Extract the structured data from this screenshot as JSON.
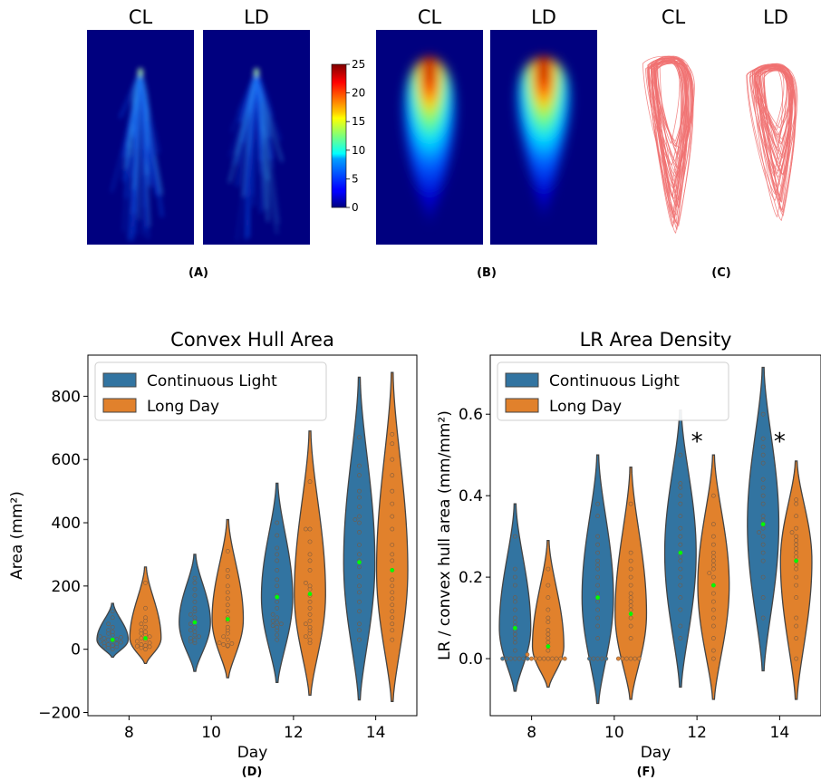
{
  "panels": {
    "A": {
      "label": "(A)",
      "left_title": "CL",
      "right_title": "LD"
    },
    "B": {
      "label": "(B)",
      "left_title": "CL",
      "right_title": "LD"
    },
    "C": {
      "label": "(C)",
      "left_title": "CL",
      "right_title": "LD"
    },
    "D": {
      "label": "(D)"
    },
    "F": {
      "label": "(F)"
    }
  },
  "colorbar": {
    "ticks": [
      0,
      5,
      10,
      15,
      20,
      25
    ],
    "range": [
      0,
      25
    ],
    "colormap": "jet"
  },
  "colors": {
    "continuous_light": "#3274a1",
    "long_day": "#e1812c",
    "mean_marker": "#00ff00",
    "trace": "#f07070",
    "heatmap_bg": "#00007f"
  },
  "chart_data": [
    {
      "type": "violin",
      "title": "Convex Hull Area",
      "xlabel": "Day",
      "ylabel": "Area (mm²)",
      "categories": [
        "8",
        "10",
        "12",
        "14"
      ],
      "ylim": [
        -210,
        930
      ],
      "yticks": [
        -200,
        0,
        200,
        400,
        600,
        800
      ],
      "legend": {
        "placement": "top-left",
        "entries": [
          "Continuous Light",
          "Long Day"
        ]
      },
      "series": [
        {
          "name": "Continuous Light",
          "color": "#3274a1",
          "mean": [
            30,
            85,
            165,
            275
          ],
          "range": [
            [
              -25,
              145
            ],
            [
              -70,
              300
            ],
            [
              -105,
              525
            ],
            [
              -160,
              860
            ]
          ],
          "points": [
            [
              0,
              5,
              8,
              10,
              12,
              15,
              18,
              20,
              22,
              25,
              28,
              30,
              32,
              35,
              38,
              40,
              45,
              50,
              55,
              60,
              70,
              80,
              100,
              120
            ],
            [
              20,
              25,
              30,
              35,
              40,
              45,
              55,
              60,
              70,
              80,
              90,
              100,
              110,
              120,
              130,
              150,
              170,
              190,
              210,
              225
            ],
            [
              30,
              45,
              60,
              70,
              75,
              80,
              85,
              90,
              100,
              110,
              130,
              150,
              170,
              200,
              220,
              250,
              280,
              300,
              320,
              360,
              400
            ],
            [
              30,
              60,
              80,
              120,
              150,
              180,
              200,
              230,
              260,
              280,
              300,
              330,
              370,
              400,
              410,
              420,
              450,
              480,
              500,
              550,
              580,
              670
            ]
          ]
        },
        {
          "name": "Long Day",
          "color": "#e1812c",
          "mean": [
            35,
            95,
            175,
            250
          ],
          "range": [
            [
              -45,
              260
            ],
            [
              -90,
              410
            ],
            [
              -145,
              690
            ],
            [
              -165,
              875
            ]
          ],
          "points": [
            [
              0,
              5,
              8,
              10,
              12,
              15,
              20,
              25,
              30,
              35,
              40,
              45,
              50,
              55,
              60,
              70,
              80,
              90,
              100,
              130,
              210
            ],
            [
              10,
              12,
              15,
              18,
              20,
              30,
              40,
              50,
              60,
              70,
              90,
              100,
              120,
              140,
              160,
              180,
              200,
              230,
              250,
              310
            ],
            [
              20,
              30,
              40,
              50,
              60,
              70,
              80,
              90,
              110,
              130,
              150,
              170,
              190,
              200,
              210,
              250,
              280,
              300,
              340,
              380,
              380,
              530
            ],
            [
              30,
              60,
              80,
              100,
              120,
              140,
              160,
              180,
              200,
              220,
              250,
              280,
              300,
              330,
              380,
              420,
              460,
              500,
              550,
              600,
              650,
              680
            ]
          ]
        }
      ]
    },
    {
      "type": "violin",
      "title": "LR Area Density",
      "xlabel": "Day",
      "ylabel": "LR / convex hull area (mm/mm²)",
      "categories": [
        "8",
        "10",
        "12",
        "14"
      ],
      "ylim": [
        -0.14,
        0.745
      ],
      "yticks": [
        0.0,
        0.2,
        0.4,
        0.6
      ],
      "ytick_labels": [
        "0.0",
        "0.2",
        "0.4",
        "0.6"
      ],
      "legend": {
        "placement": "top-left",
        "entries": [
          "Continuous Light",
          "Long Day"
        ]
      },
      "annotations": [
        {
          "text": "*",
          "category": "12"
        },
        {
          "text": "*",
          "category": "14"
        }
      ],
      "series": [
        {
          "name": "Continuous Light",
          "color": "#3274a1",
          "mean": [
            0.075,
            0.15,
            0.26,
            0.33
          ],
          "range": [
            [
              -0.08,
              0.38
            ],
            [
              -0.11,
              0.5
            ],
            [
              -0.07,
              0.61
            ],
            [
              -0.03,
              0.715
            ]
          ],
          "points": [
            [
              0,
              0,
              0,
              0,
              0,
              0,
              0,
              0.02,
              0.04,
              0.05,
              0.06,
              0.07,
              0.08,
              0.09,
              0.1,
              0.12,
              0.14,
              0.15,
              0.18,
              0.2,
              0.22,
              0.3
            ],
            [
              0,
              0,
              0,
              0,
              0,
              0.05,
              0.08,
              0.1,
              0.12,
              0.14,
              0.15,
              0.16,
              0.18,
              0.2,
              0.22,
              0.23,
              0.24,
              0.26,
              0.28,
              0.3,
              0.35,
              0.38
            ],
            [
              0.05,
              0.08,
              0.12,
              0.15,
              0.18,
              0.2,
              0.22,
              0.24,
              0.25,
              0.26,
              0.28,
              0.3,
              0.32,
              0.35,
              0.38,
              0.4,
              0.42,
              0.43,
              0.5
            ],
            [
              0.1,
              0.15,
              0.2,
              0.24,
              0.26,
              0.28,
              0.3,
              0.31,
              0.32,
              0.33,
              0.34,
              0.35,
              0.38,
              0.4,
              0.42,
              0.44,
              0.48,
              0.5,
              0.52,
              0.54,
              0.6
            ]
          ]
        },
        {
          "name": "Long Day",
          "color": "#e1812c",
          "mean": [
            0.03,
            0.11,
            0.18,
            0.24
          ],
          "range": [
            [
              -0.07,
              0.29
            ],
            [
              -0.1,
              0.47
            ],
            [
              -0.1,
              0.5
            ],
            [
              -0.1,
              0.485
            ]
          ],
          "points": [
            [
              0,
              0,
              0,
              0,
              0,
              0,
              0,
              0,
              0,
              0.01,
              0.02,
              0.03,
              0.04,
              0.05,
              0.06,
              0.07,
              0.09,
              0.1,
              0.12,
              0.15,
              0.18,
              0.22
            ],
            [
              0,
              0,
              0,
              0,
              0,
              0,
              0.05,
              0.08,
              0.1,
              0.12,
              0.13,
              0.14,
              0.15,
              0.16,
              0.18,
              0.2,
              0.22,
              0.24,
              0.26,
              0.38
            ],
            [
              0,
              0.02,
              0.05,
              0.08,
              0.1,
              0.12,
              0.14,
              0.16,
              0.18,
              0.2,
              0.21,
              0.22,
              0.23,
              0.24,
              0.25,
              0.26,
              0.28,
              0.3,
              0.33,
              0.4
            ],
            [
              0,
              0.05,
              0.08,
              0.1,
              0.15,
              0.18,
              0.2,
              0.22,
              0.23,
              0.24,
              0.25,
              0.26,
              0.27,
              0.28,
              0.29,
              0.3,
              0.31,
              0.32,
              0.35,
              0.38,
              0.39
            ]
          ]
        }
      ]
    }
  ]
}
